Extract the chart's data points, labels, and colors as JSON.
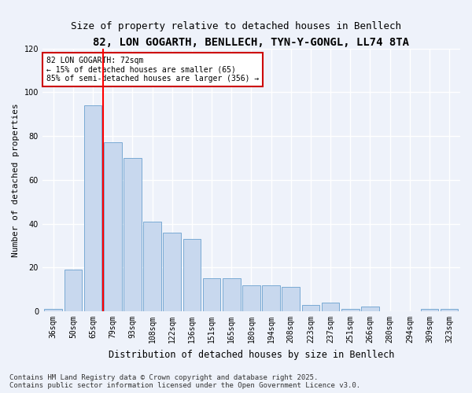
{
  "title": "82, LON GOGARTH, BENLLECH, TYN-Y-GONGL, LL74 8TA",
  "subtitle": "Size of property relative to detached houses in Benllech",
  "xlabel": "Distribution of detached houses by size in Benllech",
  "ylabel": "Number of detached properties",
  "categories": [
    "36sqm",
    "50sqm",
    "65sqm",
    "79sqm",
    "93sqm",
    "108sqm",
    "122sqm",
    "136sqm",
    "151sqm",
    "165sqm",
    "180sqm",
    "194sqm",
    "208sqm",
    "223sqm",
    "237sqm",
    "251sqm",
    "266sqm",
    "280sqm",
    "294sqm",
    "309sqm",
    "323sqm"
  ],
  "values": [
    1,
    19,
    94,
    77,
    70,
    41,
    36,
    33,
    15,
    15,
    12,
    12,
    11,
    3,
    4,
    1,
    2,
    0,
    0,
    1,
    1
  ],
  "bar_color": "#c8d8ee",
  "bar_edge_color": "#7aaad4",
  "background_color": "#eef2fa",
  "grid_color": "#ffffff",
  "vline_x": 2.5,
  "vline_color": "red",
  "annotation_title": "82 LON GOGARTH: 72sqm",
  "annotation_line1": "← 15% of detached houses are smaller (65)",
  "annotation_line2": "85% of semi-detached houses are larger (356) →",
  "annotation_box_color": "#ffffff",
  "annotation_box_edge": "#cc0000",
  "ylim": [
    0,
    120
  ],
  "yticks": [
    0,
    20,
    40,
    60,
    80,
    100,
    120
  ],
  "footer": "Contains HM Land Registry data © Crown copyright and database right 2025.\nContains public sector information licensed under the Open Government Licence v3.0.",
  "title_fontsize": 10,
  "subtitle_fontsize": 9,
  "xlabel_fontsize": 8.5,
  "ylabel_fontsize": 8,
  "tick_fontsize": 7,
  "footer_fontsize": 6.5
}
